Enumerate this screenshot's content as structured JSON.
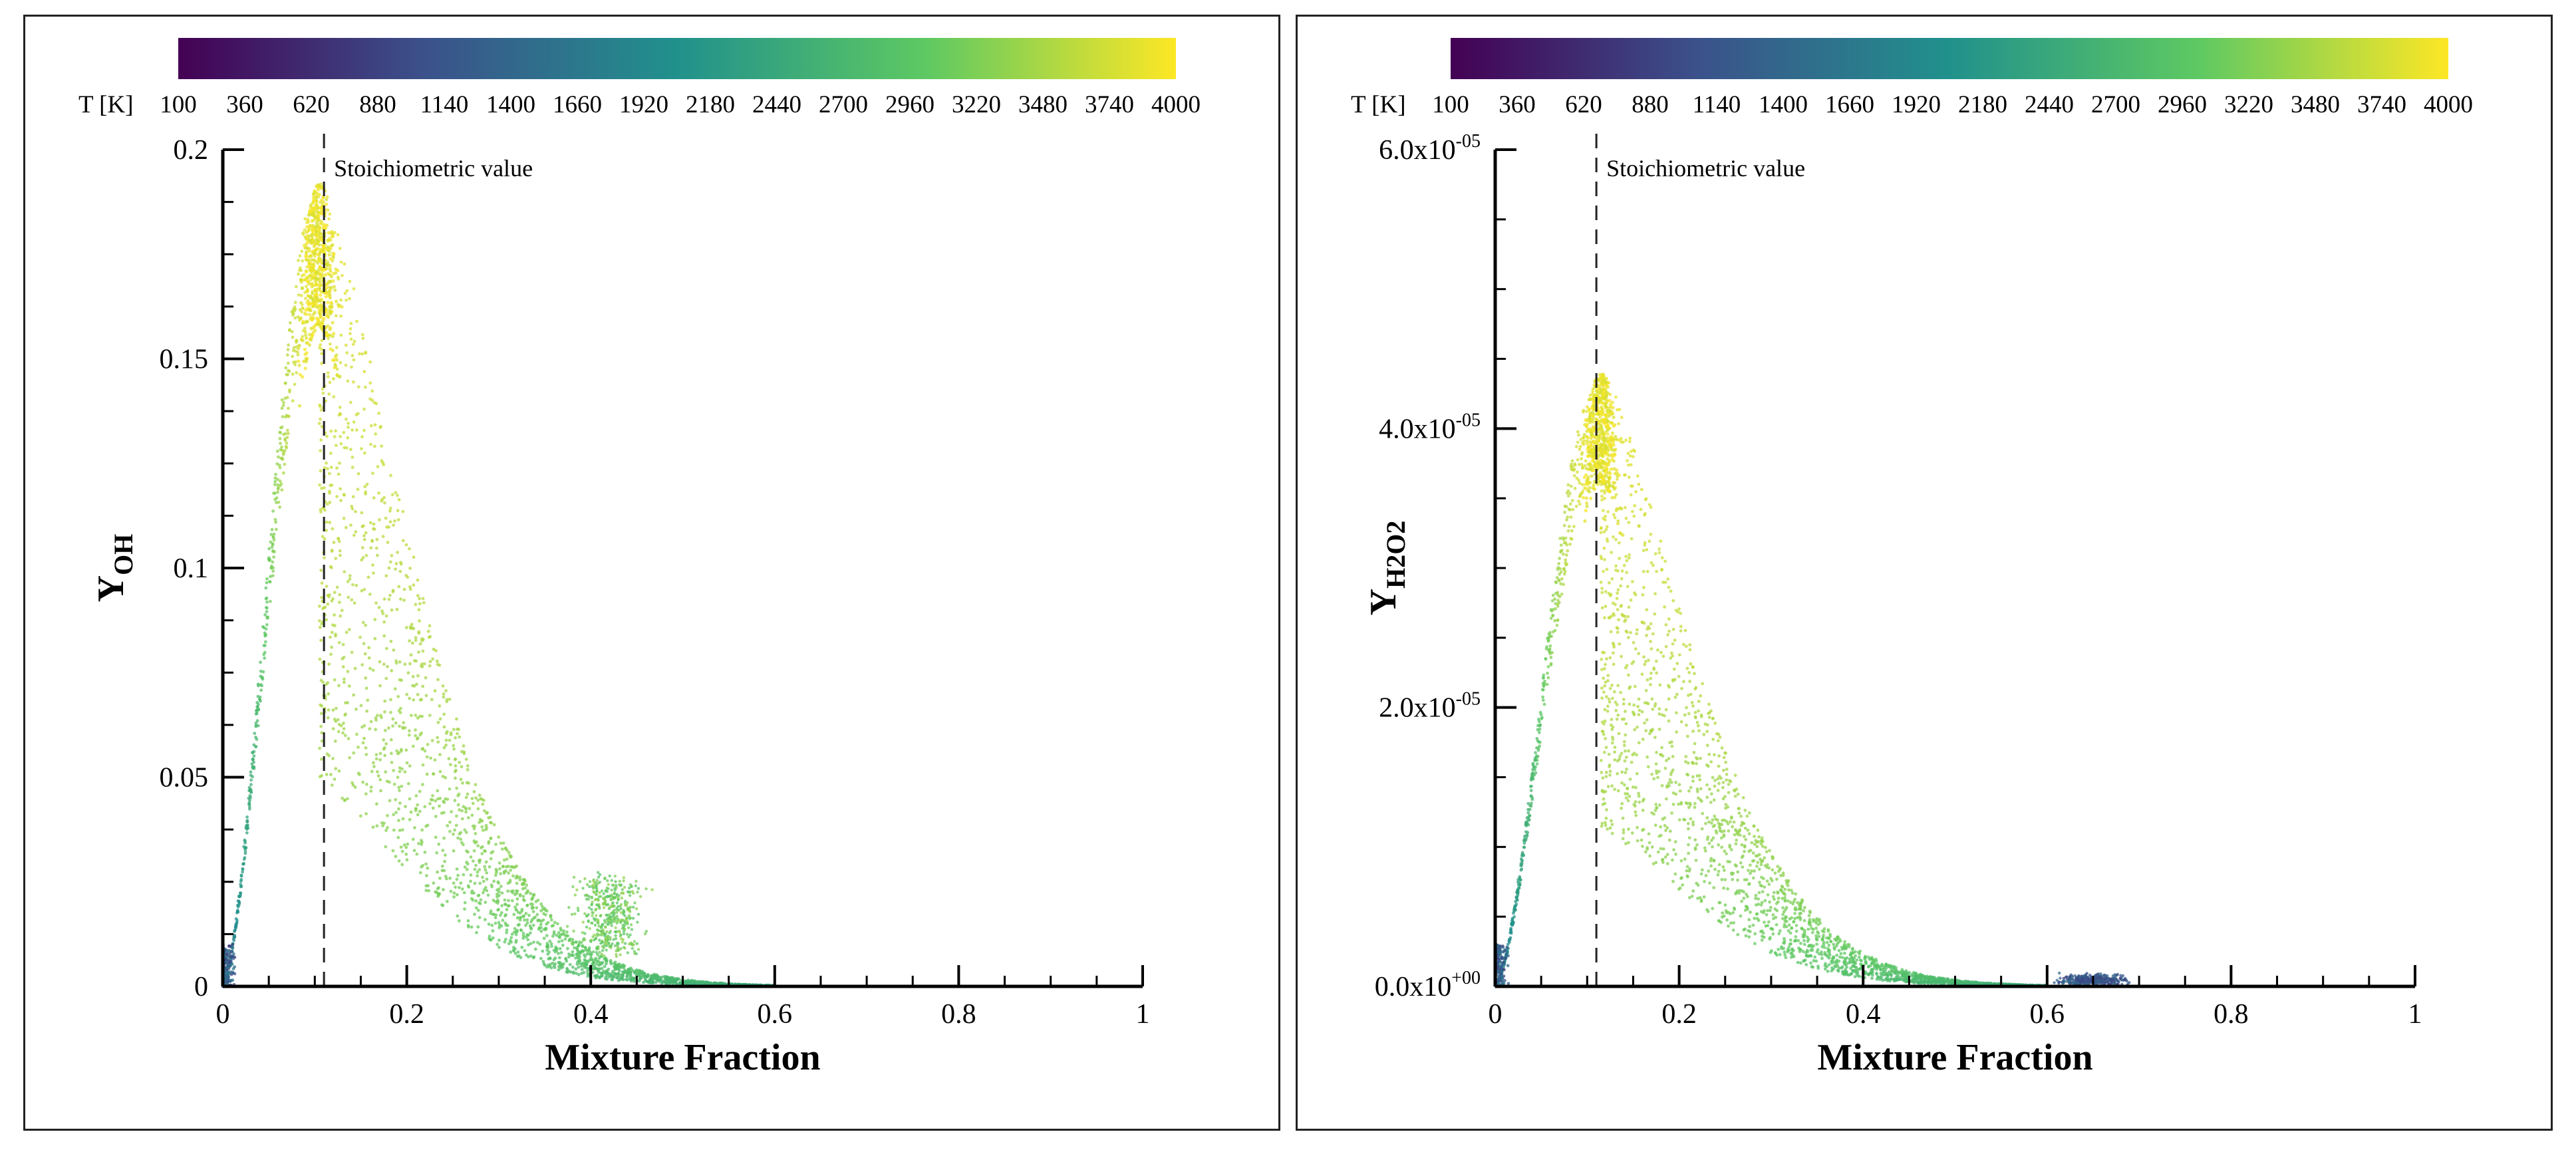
{
  "chart_data": [
    {
      "type": "scatter",
      "xlabel": "Mixture Fraction",
      "ylabel_main": "Y",
      "ylabel_sub": "OH",
      "xlim": [
        0,
        1
      ],
      "ylim": [
        0,
        0.2
      ],
      "xticks": [
        0,
        0.2,
        0.4,
        0.6,
        0.8,
        1
      ],
      "xtick_labels": [
        "0",
        "0.2",
        "0.4",
        "0.6",
        "0.8",
        "1"
      ],
      "yticks": [
        0,
        0.05,
        0.1,
        0.15,
        0.2
      ],
      "ytick_labels": [
        {
          "main": "0",
          "exp": ""
        },
        {
          "main": "0.05",
          "exp": ""
        },
        {
          "main": "0.1",
          "exp": ""
        },
        {
          "main": "0.15",
          "exp": ""
        },
        {
          "main": "0.2",
          "exp": ""
        }
      ],
      "stoichiometric_x": 0.11,
      "annotation": "Stoichiometric value",
      "colorbar": {
        "title": "T [K]",
        "min": 100,
        "max": 4000,
        "labels": [
          "100",
          "360",
          "620",
          "880",
          "1140",
          "1400",
          "1660",
          "1920",
          "2180",
          "2440",
          "2700",
          "2960",
          "3220",
          "3480",
          "3740",
          "4000"
        ]
      },
      "peak": {
        "x": 0.105,
        "y": 0.192
      },
      "secondary_cluster": {
        "x": 0.42,
        "y": 0.02
      }
    },
    {
      "type": "scatter",
      "xlabel": "Mixture Fraction",
      "ylabel_main": "Y",
      "ylabel_sub": "H2O2",
      "xlim": [
        0,
        1
      ],
      "ylim": [
        0,
        6e-05
      ],
      "xticks": [
        0,
        0.2,
        0.4,
        0.6,
        0.8,
        1
      ],
      "xtick_labels": [
        "0",
        "0.2",
        "0.4",
        "0.6",
        "0.8",
        "1"
      ],
      "yticks": [
        0,
        2e-05,
        4e-05,
        6e-05
      ],
      "ytick_labels": [
        {
          "main": "0.0x10",
          "exp": "+00"
        },
        {
          "main": "2.0x10",
          "exp": "-05"
        },
        {
          "main": "4.0x10",
          "exp": "-05"
        },
        {
          "main": "6.0x10",
          "exp": "-05"
        }
      ],
      "stoichiometric_x": 0.11,
      "annotation": "Stoichiometric value",
      "colorbar": {
        "title": "T [K]",
        "min": 100,
        "max": 4000,
        "labels": [
          "100",
          "360",
          "620",
          "880",
          "1140",
          "1400",
          "1660",
          "1920",
          "2180",
          "2440",
          "2700",
          "2960",
          "3220",
          "3480",
          "3740",
          "4000"
        ]
      },
      "peak": {
        "x": 0.115,
        "y": 4.4e-05
      },
      "secondary_cluster": {
        "x": 0.65,
        "y": 5e-07
      }
    }
  ],
  "colormap": [
    "#440154",
    "#3b528b",
    "#21918c",
    "#5ec962",
    "#fde725"
  ]
}
